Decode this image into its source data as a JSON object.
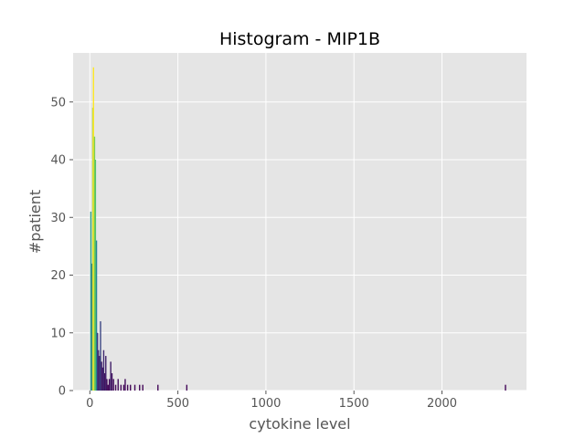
{
  "chart_data": {
    "type": "bar",
    "title": "Histogram - MIP1B",
    "xlabel": "cytokine level",
    "ylabel": "#patient",
    "xlim": [
      -95,
      2480
    ],
    "ylim": [
      0,
      58.5
    ],
    "xticks": [
      0,
      500,
      1000,
      1500,
      2000
    ],
    "yticks": [
      0,
      10,
      20,
      30,
      40,
      50
    ],
    "grid": true,
    "bin_width": 6,
    "colormap": "viridis (bar height mapped to color)",
    "bins": [
      {
        "x": 5,
        "count": 31
      },
      {
        "x": 11,
        "count": 22
      },
      {
        "x": 16,
        "count": 49
      },
      {
        "x": 20,
        "count": 56
      },
      {
        "x": 26,
        "count": 44
      },
      {
        "x": 31,
        "count": 40
      },
      {
        "x": 37,
        "count": 26
      },
      {
        "x": 43,
        "count": 10
      },
      {
        "x": 48,
        "count": 7
      },
      {
        "x": 54,
        "count": 6
      },
      {
        "x": 60,
        "count": 12
      },
      {
        "x": 66,
        "count": 5
      },
      {
        "x": 72,
        "count": 4
      },
      {
        "x": 78,
        "count": 7
      },
      {
        "x": 84,
        "count": 3
      },
      {
        "x": 90,
        "count": 6
      },
      {
        "x": 96,
        "count": 2
      },
      {
        "x": 103,
        "count": 1
      },
      {
        "x": 110,
        "count": 2
      },
      {
        "x": 118,
        "count": 5
      },
      {
        "x": 125,
        "count": 3
      },
      {
        "x": 134,
        "count": 2
      },
      {
        "x": 146,
        "count": 1
      },
      {
        "x": 160,
        "count": 2
      },
      {
        "x": 176,
        "count": 1
      },
      {
        "x": 192,
        "count": 1
      },
      {
        "x": 200,
        "count": 2
      },
      {
        "x": 214,
        "count": 1
      },
      {
        "x": 230,
        "count": 1
      },
      {
        "x": 255,
        "count": 1
      },
      {
        "x": 282,
        "count": 1
      },
      {
        "x": 300,
        "count": 1
      },
      {
        "x": 386,
        "count": 1
      },
      {
        "x": 550,
        "count": 1
      },
      {
        "x": 2360,
        "count": 1
      }
    ]
  }
}
